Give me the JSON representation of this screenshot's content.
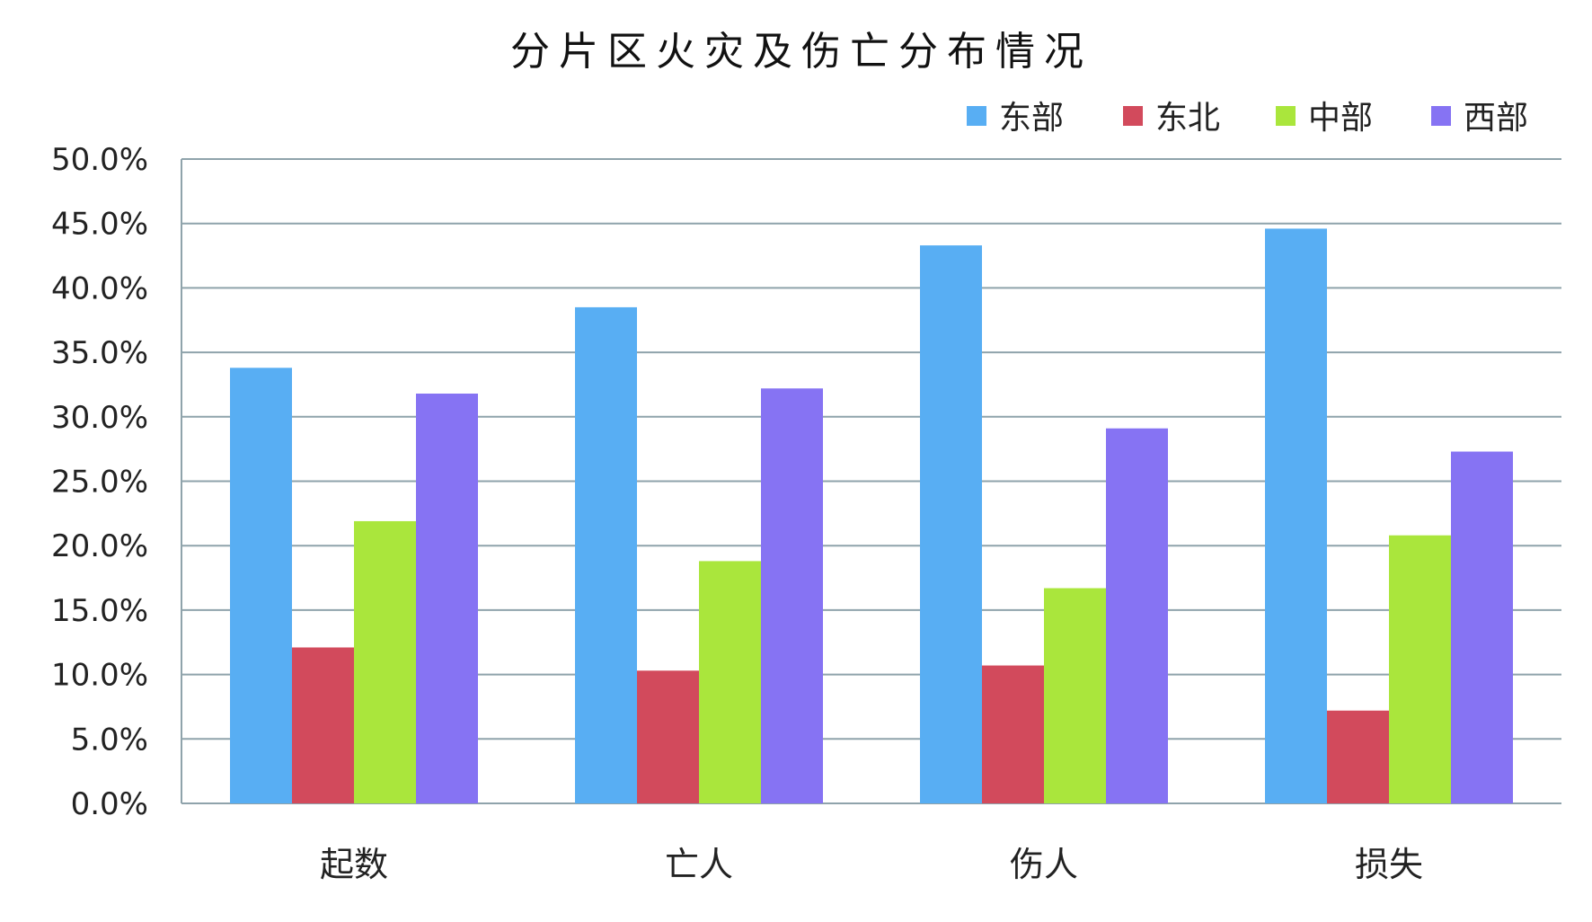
{
  "chart_data": {
    "type": "bar",
    "title": "分片区火灾及伤亡分布情况",
    "xlabel": "",
    "ylabel": "",
    "categories": [
      "起数",
      "亡人",
      "伤人",
      "损失"
    ],
    "series": [
      {
        "name": "东部",
        "color": "#58AEF3",
        "values": [
          33.8,
          38.5,
          43.3,
          44.6
        ]
      },
      {
        "name": "东北",
        "color": "#D24A5C",
        "values": [
          12.1,
          10.3,
          10.7,
          7.2
        ]
      },
      {
        "name": "中部",
        "color": "#AAE63C",
        "values": [
          21.9,
          18.8,
          16.7,
          20.8
        ]
      },
      {
        "name": "西部",
        "color": "#8673F3",
        "values": [
          31.8,
          32.2,
          29.1,
          27.3
        ]
      }
    ],
    "ylim": [
      0,
      50
    ],
    "yticks": [
      "0.0%",
      "5.0%",
      "10.0%",
      "15.0%",
      "20.0%",
      "25.0%",
      "30.0%",
      "35.0%",
      "40.0%",
      "45.0%",
      "50.0%"
    ],
    "unit": "%",
    "grid": true,
    "legend_position": "top-right"
  }
}
